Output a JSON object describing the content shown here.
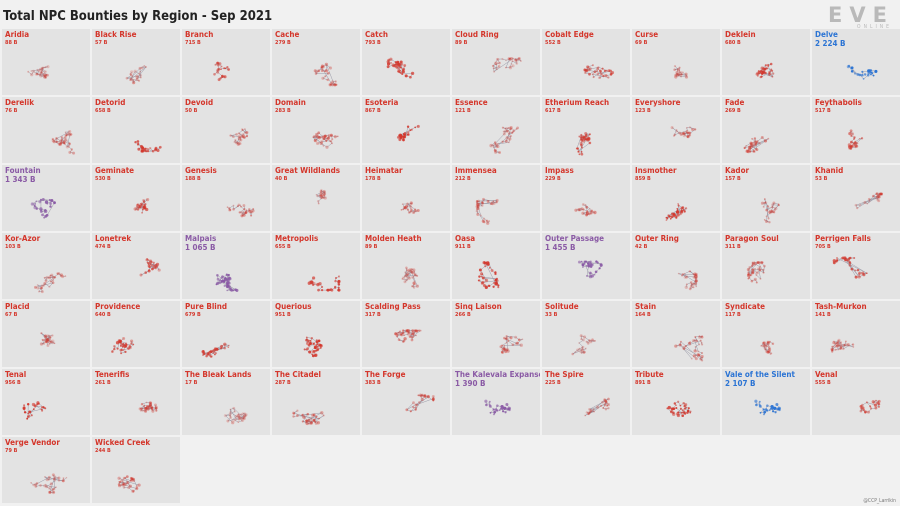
{
  "logo": {
    "main": "EVE",
    "sub": "ONLINE"
  },
  "credit": "@CCP_Larrikin",
  "colors": {
    "red": "#d4362b",
    "purple": "#8a5aa5",
    "blue": "#2b74d4",
    "big_red": "#d4362b"
  },
  "chart_data": {
    "type": "small-multiples",
    "title": "Total NPC Bounties by Region - Sep 2021",
    "unit": "B",
    "columns": 10,
    "regions": [
      {
        "name": "Aridia",
        "label": "88 B",
        "value": 88,
        "color": "red"
      },
      {
        "name": "Black Rise",
        "label": "57 B",
        "value": 57,
        "color": "red"
      },
      {
        "name": "Branch",
        "label": "715 B",
        "value": 715,
        "color": "red"
      },
      {
        "name": "Cache",
        "label": "279 B",
        "value": 279,
        "color": "red"
      },
      {
        "name": "Catch",
        "label": "793 B",
        "value": 793,
        "color": "red"
      },
      {
        "name": "Cloud Ring",
        "label": "89 B",
        "value": 89,
        "color": "red"
      },
      {
        "name": "Cobalt Edge",
        "label": "552 B",
        "value": 552,
        "color": "red"
      },
      {
        "name": "Curse",
        "label": "69 B",
        "value": 69,
        "color": "red"
      },
      {
        "name": "Deklein",
        "label": "680 B",
        "value": 680,
        "color": "red"
      },
      {
        "name": "Delve",
        "label": "2 224 B",
        "value": 2224,
        "color": "blue"
      },
      {
        "name": "Derelik",
        "label": "76 B",
        "value": 76,
        "color": "red"
      },
      {
        "name": "Detorid",
        "label": "658 B",
        "value": 658,
        "color": "red"
      },
      {
        "name": "Devoid",
        "label": "50 B",
        "value": 50,
        "color": "red"
      },
      {
        "name": "Domain",
        "label": "283 B",
        "value": 283,
        "color": "red"
      },
      {
        "name": "Esoteria",
        "label": "867 B",
        "value": 867,
        "color": "red"
      },
      {
        "name": "Essence",
        "label": "121 B",
        "value": 121,
        "color": "red"
      },
      {
        "name": "Etherium Reach",
        "label": "617 B",
        "value": 617,
        "color": "red"
      },
      {
        "name": "Everyshore",
        "label": "123 B",
        "value": 123,
        "color": "red"
      },
      {
        "name": "Fade",
        "label": "269 B",
        "value": 269,
        "color": "red"
      },
      {
        "name": "Feythabolis",
        "label": "517 B",
        "value": 517,
        "color": "red"
      },
      {
        "name": "Fountain",
        "label": "1 343 B",
        "value": 1343,
        "color": "purple"
      },
      {
        "name": "Geminate",
        "label": "530 B",
        "value": 530,
        "color": "red"
      },
      {
        "name": "Genesis",
        "label": "188 B",
        "value": 188,
        "color": "red"
      },
      {
        "name": "Great Wildlands",
        "label": "40 B",
        "value": 40,
        "color": "red"
      },
      {
        "name": "Heimatar",
        "label": "178 B",
        "value": 178,
        "color": "red"
      },
      {
        "name": "Immensea",
        "label": "212 B",
        "value": 212,
        "color": "red"
      },
      {
        "name": "Impass",
        "label": "229 B",
        "value": 229,
        "color": "red"
      },
      {
        "name": "Insmother",
        "label": "859 B",
        "value": 859,
        "color": "red"
      },
      {
        "name": "Kador",
        "label": "157 B",
        "value": 157,
        "color": "red"
      },
      {
        "name": "Khanid",
        "label": "53 B",
        "value": 53,
        "color": "red"
      },
      {
        "name": "Kor-Azor",
        "label": "103 B",
        "value": 103,
        "color": "red"
      },
      {
        "name": "Lonetrek",
        "label": "474 B",
        "value": 474,
        "color": "red"
      },
      {
        "name": "Malpais",
        "label": "1 065 B",
        "value": 1065,
        "color": "purple"
      },
      {
        "name": "Metropolis",
        "label": "655 B",
        "value": 655,
        "color": "red"
      },
      {
        "name": "Molden Heath",
        "label": "89 B",
        "value": 89,
        "color": "red"
      },
      {
        "name": "Oasa",
        "label": "911 B",
        "value": 911,
        "color": "red"
      },
      {
        "name": "Outer Passage",
        "label": "1 455 B",
        "value": 1455,
        "color": "purple"
      },
      {
        "name": "Outer Ring",
        "label": "42 B",
        "value": 42,
        "color": "red"
      },
      {
        "name": "Paragon Soul",
        "label": "311 B",
        "value": 311,
        "color": "red"
      },
      {
        "name": "Perrigen Falls",
        "label": "705 B",
        "value": 705,
        "color": "red"
      },
      {
        "name": "Placid",
        "label": "67 B",
        "value": 67,
        "color": "red"
      },
      {
        "name": "Providence",
        "label": "640 B",
        "value": 640,
        "color": "red"
      },
      {
        "name": "Pure Blind",
        "label": "679 B",
        "value": 679,
        "color": "red"
      },
      {
        "name": "Querious",
        "label": "951 B",
        "value": 951,
        "color": "red"
      },
      {
        "name": "Scalding Pass",
        "label": "317 B",
        "value": 317,
        "color": "red"
      },
      {
        "name": "Sinq Laison",
        "label": "266 B",
        "value": 266,
        "color": "red"
      },
      {
        "name": "Solitude",
        "label": "33 B",
        "value": 33,
        "color": "red"
      },
      {
        "name": "Stain",
        "label": "164 B",
        "value": 164,
        "color": "red"
      },
      {
        "name": "Syndicate",
        "label": "117 B",
        "value": 117,
        "color": "red"
      },
      {
        "name": "Tash-Murkon",
        "label": "141 B",
        "value": 141,
        "color": "red"
      },
      {
        "name": "Tenal",
        "label": "956 B",
        "value": 956,
        "color": "red"
      },
      {
        "name": "Tenerifis",
        "label": "261 B",
        "value": 261,
        "color": "red"
      },
      {
        "name": "The Bleak Lands",
        "label": "17 B",
        "value": 17,
        "color": "red"
      },
      {
        "name": "The Citadel",
        "label": "287 B",
        "value": 287,
        "color": "red"
      },
      {
        "name": "The Forge",
        "label": "383 B",
        "value": 383,
        "color": "red"
      },
      {
        "name": "The Kalevala Expanse",
        "label": "1 390 B",
        "value": 1390,
        "color": "purple"
      },
      {
        "name": "The Spire",
        "label": "225 B",
        "value": 225,
        "color": "red"
      },
      {
        "name": "Tribute",
        "label": "891 B",
        "value": 891,
        "color": "red"
      },
      {
        "name": "Vale of the Silent",
        "label": "2 107 B",
        "value": 2107,
        "color": "blue"
      },
      {
        "name": "Venal",
        "label": "555 B",
        "value": 555,
        "color": "red"
      },
      {
        "name": "Verge Vendor",
        "label": "79 B",
        "value": 79,
        "color": "red"
      },
      {
        "name": "Wicked Creek",
        "label": "244 B",
        "value": 244,
        "color": "red"
      }
    ]
  }
}
